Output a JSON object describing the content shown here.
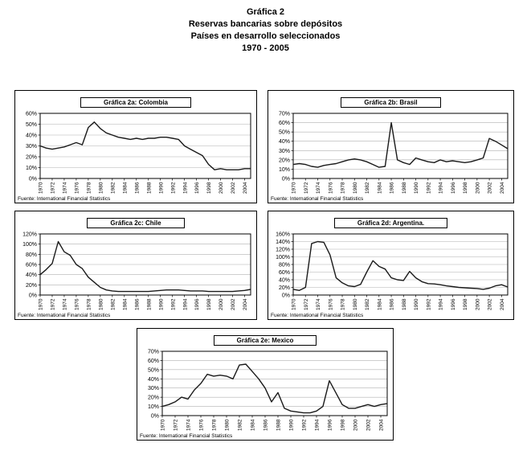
{
  "page_title": {
    "lines": [
      "Gráfica 2",
      "Reservas bancarias sobre depósitos",
      "Países en desarrollo seleccionados",
      "1970 - 2005"
    ]
  },
  "source_label": "Fuente: International Financial Statistics",
  "line_color": "#1a1a1a",
  "grid_color": "#b0b0b0",
  "chart_data": [
    {
      "id": "colombia",
      "type": "line",
      "title": "Gráfica 2a: Colombia",
      "ylim": [
        0,
        60
      ],
      "ytick_labels": [
        "0%",
        "10%",
        "20%",
        "30%",
        "40%",
        "50%",
        "60%"
      ],
      "xtick_labels": [
        "1970",
        "1972",
        "1974",
        "1976",
        "1978",
        "1980",
        "1982",
        "1984",
        "1986",
        "1988",
        "1990",
        "1992",
        "1994",
        "1996",
        "1998",
        "2000",
        "2002",
        "2004"
      ],
      "x": [
        1970,
        1971,
        1972,
        1973,
        1974,
        1975,
        1976,
        1977,
        1978,
        1979,
        1980,
        1981,
        1982,
        1983,
        1984,
        1985,
        1986,
        1987,
        1988,
        1989,
        1990,
        1991,
        1992,
        1993,
        1994,
        1995,
        1996,
        1997,
        1998,
        1999,
        2000,
        2001,
        2002,
        2003,
        2004,
        2005
      ],
      "values": [
        30,
        28,
        27,
        28,
        29,
        31,
        33,
        31,
        47,
        52,
        46,
        42,
        40,
        38,
        37,
        36,
        37,
        36,
        37,
        37,
        38,
        38,
        37,
        36,
        30,
        27,
        24,
        21,
        13,
        8,
        9,
        8,
        8,
        8,
        9,
        9
      ],
      "grid": true,
      "legend": "none"
    },
    {
      "id": "brasil",
      "type": "line",
      "title": "Gráfica 2b: Brasil",
      "ylim": [
        0,
        70
      ],
      "ytick_labels": [
        "0%",
        "10%",
        "20%",
        "30%",
        "40%",
        "50%",
        "60%",
        "70%"
      ],
      "xtick_labels": [
        "1970",
        "1972",
        "1974",
        "1976",
        "1978",
        "1980",
        "1982",
        "1984",
        "1986",
        "1988",
        "1990",
        "1992",
        "1994",
        "1996",
        "1998",
        "2000",
        "2002",
        "2004"
      ],
      "x": [
        1970,
        1971,
        1972,
        1973,
        1974,
        1975,
        1976,
        1977,
        1978,
        1979,
        1980,
        1981,
        1982,
        1983,
        1984,
        1985,
        1986,
        1987,
        1988,
        1989,
        1990,
        1991,
        1992,
        1993,
        1994,
        1995,
        1996,
        1997,
        1998,
        1999,
        2000,
        2001,
        2002,
        2003,
        2004,
        2005
      ],
      "values": [
        15,
        16,
        15,
        13,
        12,
        14,
        15,
        16,
        18,
        20,
        21,
        20,
        18,
        15,
        12,
        13,
        60,
        20,
        17,
        15,
        22,
        20,
        18,
        17,
        20,
        18,
        19,
        18,
        17,
        18,
        20,
        22,
        43,
        40,
        36,
        32
      ],
      "grid": true,
      "legend": "none"
    },
    {
      "id": "chile",
      "type": "line",
      "title": "Gráfica 2c: Chile",
      "ylim": [
        0,
        120
      ],
      "ytick_labels": [
        "0%",
        "20%",
        "40%",
        "60%",
        "80%",
        "100%",
        "120%"
      ],
      "xtick_labels": [
        "1970",
        "1972",
        "1974",
        "1976",
        "1978",
        "1980",
        "1982",
        "1984",
        "1986",
        "1988",
        "1990",
        "1992",
        "1994",
        "1996",
        "1998",
        "2000",
        "2002",
        "2004"
      ],
      "x": [
        1970,
        1971,
        1972,
        1973,
        1974,
        1975,
        1976,
        1977,
        1978,
        1979,
        1980,
        1981,
        1982,
        1983,
        1984,
        1985,
        1986,
        1987,
        1988,
        1989,
        1990,
        1991,
        1992,
        1993,
        1994,
        1995,
        1996,
        1997,
        1998,
        1999,
        2000,
        2001,
        2002,
        2003,
        2004,
        2005
      ],
      "values": [
        40,
        50,
        62,
        105,
        85,
        78,
        60,
        52,
        35,
        25,
        15,
        10,
        8,
        7,
        7,
        7,
        7,
        7,
        7,
        8,
        9,
        10,
        10,
        10,
        9,
        8,
        8,
        8,
        7,
        7,
        7,
        7,
        7,
        8,
        9,
        11
      ],
      "grid": true,
      "legend": "none"
    },
    {
      "id": "argentina",
      "type": "line",
      "title": "Gráfica 2d: Argentina.",
      "ylim": [
        0,
        160
      ],
      "ytick_labels": [
        "0%",
        "20%",
        "40%",
        "60%",
        "80%",
        "100%",
        "120%",
        "140%",
        "160%"
      ],
      "xtick_labels": [
        "1970",
        "1972",
        "1974",
        "1976",
        "1978",
        "1980",
        "1982",
        "1984",
        "1986",
        "1988",
        "1990",
        "1992",
        "1994",
        "1996",
        "1998",
        "2000",
        "2002",
        "2004"
      ],
      "x": [
        1970,
        1971,
        1972,
        1973,
        1974,
        1975,
        1976,
        1977,
        1978,
        1979,
        1980,
        1981,
        1982,
        1983,
        1984,
        1985,
        1986,
        1987,
        1988,
        1989,
        1990,
        1991,
        1992,
        1993,
        1994,
        1995,
        1996,
        1997,
        1998,
        1999,
        2000,
        2001,
        2002,
        2003,
        2004,
        2005
      ],
      "values": [
        15,
        12,
        20,
        135,
        140,
        138,
        105,
        45,
        32,
        24,
        22,
        28,
        60,
        90,
        75,
        68,
        45,
        40,
        38,
        62,
        45,
        35,
        30,
        29,
        27,
        24,
        22,
        20,
        19,
        18,
        17,
        15,
        18,
        24,
        27,
        21
      ],
      "grid": true,
      "legend": "none"
    },
    {
      "id": "mexico",
      "type": "line",
      "title": "Gráfica 2e: Mexico",
      "ylim": [
        0,
        70
      ],
      "ytick_labels": [
        "0%",
        "10%",
        "20%",
        "30%",
        "40%",
        "50%",
        "60%",
        "70%"
      ],
      "xtick_labels": [
        "1970",
        "1972",
        "1974",
        "1976",
        "1978",
        "1980",
        "1982",
        "1984",
        "1986",
        "1988",
        "1990",
        "1992",
        "1994",
        "1996",
        "1998",
        "2000",
        "2002",
        "2004"
      ],
      "x": [
        1970,
        1971,
        1972,
        1973,
        1974,
        1975,
        1976,
        1977,
        1978,
        1979,
        1980,
        1981,
        1982,
        1983,
        1984,
        1985,
        1986,
        1987,
        1988,
        1989,
        1990,
        1991,
        1992,
        1993,
        1994,
        1995,
        1996,
        1997,
        1998,
        1999,
        2000,
        2001,
        2002,
        2003,
        2004,
        2005
      ],
      "values": [
        10,
        12,
        15,
        20,
        18,
        28,
        35,
        45,
        43,
        44,
        43,
        40,
        55,
        56,
        48,
        40,
        30,
        15,
        25,
        8,
        5,
        4,
        3,
        3,
        5,
        10,
        38,
        25,
        12,
        8,
        8,
        10,
        12,
        10,
        12,
        13
      ],
      "grid": true,
      "legend": "none"
    }
  ]
}
